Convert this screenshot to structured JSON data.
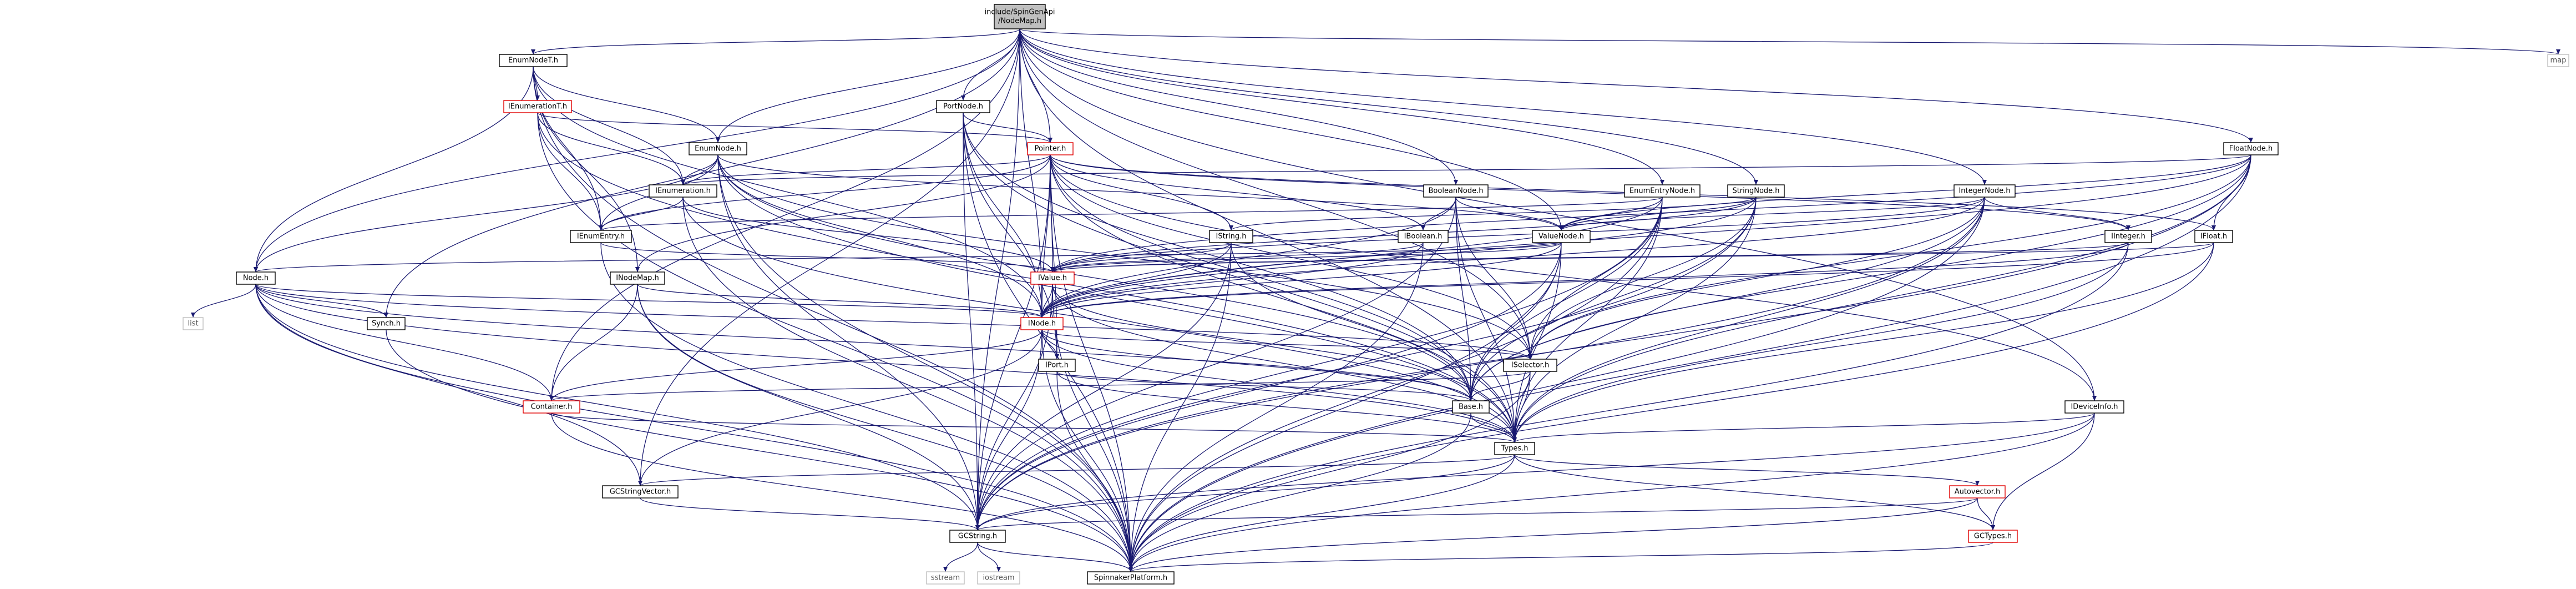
{
  "nodes": [
    {
      "id": "root",
      "label": "include/SpinGenApi/NodeMap.h",
      "lines": [
        "include/SpinGenApi",
        "/NodeMap.h"
      ],
      "style": "root"
    },
    {
      "id": "enumnodet",
      "label": "EnumNodeT.h",
      "style": "normal"
    },
    {
      "id": "ienumerationt",
      "label": "IEnumerationT.h",
      "style": "red"
    },
    {
      "id": "portnode",
      "label": "PortNode.h",
      "style": "normal"
    },
    {
      "id": "pointer",
      "label": "Pointer.h",
      "style": "red"
    },
    {
      "id": "enumnode",
      "label": "EnumNode.h",
      "style": "normal"
    },
    {
      "id": "booleannode",
      "label": "BooleanNode.h",
      "style": "normal"
    },
    {
      "id": "enumentrynode",
      "label": "EnumEntryNode.h",
      "style": "normal"
    },
    {
      "id": "stringnode",
      "label": "StringNode.h",
      "style": "normal"
    },
    {
      "id": "integernode",
      "label": "IntegerNode.h",
      "style": "normal"
    },
    {
      "id": "floatnode",
      "label": "FloatNode.h",
      "style": "normal"
    },
    {
      "id": "map",
      "label": "map",
      "style": "ghost"
    },
    {
      "id": "ienumeration",
      "label": "IEnumeration.h",
      "style": "normal"
    },
    {
      "id": "ienumentry",
      "label": "IEnumEntry.h",
      "style": "normal"
    },
    {
      "id": "iboolean",
      "label": "IBoolean.h",
      "style": "normal"
    },
    {
      "id": "istring",
      "label": "IString.h",
      "style": "normal"
    },
    {
      "id": "valuenode",
      "label": "ValueNode.h",
      "style": "normal"
    },
    {
      "id": "integer",
      "label": "IInteger.h",
      "style": "normal"
    },
    {
      "id": "ifloat",
      "label": "IFloat.h",
      "style": "normal"
    },
    {
      "id": "node",
      "label": "Node.h",
      "style": "normal"
    },
    {
      "id": "list",
      "label": "list",
      "style": "ghost"
    },
    {
      "id": "nodemap",
      "label": "INodeMap.h",
      "style": "normal"
    },
    {
      "id": "ivalue",
      "label": "IValue.h",
      "style": "red"
    },
    {
      "id": "synch",
      "label": "Synch.h",
      "style": "normal"
    },
    {
      "id": "inode",
      "label": "INode.h",
      "style": "red"
    },
    {
      "id": "iport",
      "label": "IPort.h",
      "style": "normal"
    },
    {
      "id": "iselector",
      "label": "ISelector.h",
      "style": "normal"
    },
    {
      "id": "container",
      "label": "Container.h",
      "style": "red"
    },
    {
      "id": "base",
      "label": "Base.h",
      "style": "normal"
    },
    {
      "id": "ideviceinfo",
      "label": "IDeviceInfo.h",
      "style": "normal"
    },
    {
      "id": "types",
      "label": "Types.h",
      "style": "normal"
    },
    {
      "id": "gcstringvector",
      "label": "GCStringVector.h",
      "style": "normal"
    },
    {
      "id": "autovector",
      "label": "Autovector.h",
      "style": "red"
    },
    {
      "id": "gcstring",
      "label": "GCString.h",
      "style": "normal"
    },
    {
      "id": "gctypes",
      "label": "GCTypes.h",
      "style": "red"
    },
    {
      "id": "sstream",
      "label": "sstream",
      "style": "ghost"
    },
    {
      "id": "iostream",
      "label": "iostream",
      "style": "ghost"
    },
    {
      "id": "spinplatform",
      "label": "SpinnakerPlatform.h",
      "style": "normal"
    }
  ],
  "edges": [
    [
      "root",
      "enumnodet"
    ],
    [
      "root",
      "portnode"
    ],
    [
      "root",
      "pointer"
    ],
    [
      "root",
      "enumnode"
    ],
    [
      "root",
      "booleannode"
    ],
    [
      "root",
      "enumentrynode"
    ],
    [
      "root",
      "stringnode"
    ],
    [
      "root",
      "integernode"
    ],
    [
      "root",
      "floatnode"
    ],
    [
      "root",
      "map"
    ],
    [
      "root",
      "valuenode"
    ],
    [
      "root",
      "node"
    ],
    [
      "root",
      "synch"
    ],
    [
      "root",
      "inode"
    ],
    [
      "root",
      "iselector"
    ],
    [
      "root",
      "container"
    ],
    [
      "root",
      "gcstring"
    ],
    [
      "root",
      "gcstringvector"
    ],
    [
      "root",
      "ideviceinfo"
    ],
    [
      "root",
      "types"
    ],
    [
      "enumnodet",
      "ienumerationt"
    ],
    [
      "enumnodet",
      "enumnode"
    ],
    [
      "enumnodet",
      "ienumeration"
    ],
    [
      "enumnodet",
      "ienumentry"
    ],
    [
      "enumnodet",
      "node"
    ],
    [
      "enumnodet",
      "nodemap"
    ],
    [
      "enumnodet",
      "spinplatform"
    ],
    [
      "enumnodet",
      "inode"
    ],
    [
      "ienumerationt",
      "pointer"
    ],
    [
      "ienumerationt",
      "ienumeration"
    ],
    [
      "ienumerationt",
      "ienumentry"
    ],
    [
      "ienumerationt",
      "types"
    ],
    [
      "ienumerationt",
      "spinplatform"
    ],
    [
      "portnode",
      "pointer"
    ],
    [
      "portnode",
      "iport"
    ],
    [
      "portnode",
      "inode"
    ],
    [
      "portnode",
      "types"
    ],
    [
      "portnode",
      "base"
    ],
    [
      "portnode",
      "gcstring"
    ],
    [
      "portnode",
      "spinplatform"
    ],
    [
      "pointer",
      "ienumeration"
    ],
    [
      "pointer",
      "ienumentry"
    ],
    [
      "pointer",
      "iboolean"
    ],
    [
      "pointer",
      "istring"
    ],
    [
      "pointer",
      "integer"
    ],
    [
      "pointer",
      "ifloat"
    ],
    [
      "pointer",
      "ivalue"
    ],
    [
      "pointer",
      "inode"
    ],
    [
      "pointer",
      "iport"
    ],
    [
      "pointer",
      "iselector"
    ],
    [
      "pointer",
      "nodemap"
    ],
    [
      "pointer",
      "gcstring"
    ],
    [
      "pointer",
      "base"
    ],
    [
      "pointer",
      "types"
    ],
    [
      "pointer",
      "spinplatform"
    ],
    [
      "pointer",
      "ideviceinfo"
    ],
    [
      "enumnode",
      "ienumeration"
    ],
    [
      "enumnode",
      "ienumentry"
    ],
    [
      "enumnode",
      "valuenode"
    ],
    [
      "enumnode",
      "node"
    ],
    [
      "enumnode",
      "inode"
    ],
    [
      "enumnode",
      "iselector"
    ],
    [
      "enumnode",
      "base"
    ],
    [
      "enumnode",
      "types"
    ],
    [
      "enumnode",
      "gcstring"
    ],
    [
      "enumnode",
      "spinplatform"
    ],
    [
      "booleannode",
      "iboolean"
    ],
    [
      "booleannode",
      "valuenode"
    ],
    [
      "booleannode",
      "inode"
    ],
    [
      "booleannode",
      "iselector"
    ],
    [
      "booleannode",
      "base"
    ],
    [
      "booleannode",
      "types"
    ],
    [
      "booleannode",
      "gcstring"
    ],
    [
      "enumentrynode",
      "ienumentry"
    ],
    [
      "enumentrynode",
      "valuenode"
    ],
    [
      "enumentrynode",
      "inode"
    ],
    [
      "enumentrynode",
      "iselector"
    ],
    [
      "enumentrynode",
      "base"
    ],
    [
      "enumentrynode",
      "types"
    ],
    [
      "enumentrynode",
      "gcstring"
    ],
    [
      "enumentrynode",
      "spinplatform"
    ],
    [
      "stringnode",
      "istring"
    ],
    [
      "stringnode",
      "valuenode"
    ],
    [
      "stringnode",
      "inode"
    ],
    [
      "stringnode",
      "ivalue"
    ],
    [
      "stringnode",
      "iselector"
    ],
    [
      "stringnode",
      "base"
    ],
    [
      "stringnode",
      "types"
    ],
    [
      "stringnode",
      "gcstring"
    ],
    [
      "integernode",
      "integer"
    ],
    [
      "integernode",
      "valuenode"
    ],
    [
      "integernode",
      "inode"
    ],
    [
      "integernode",
      "ivalue"
    ],
    [
      "integernode",
      "iselector"
    ],
    [
      "integernode",
      "base"
    ],
    [
      "integernode",
      "types"
    ],
    [
      "integernode",
      "gcstring"
    ],
    [
      "integernode",
      "spinplatform"
    ],
    [
      "floatnode",
      "ifloat"
    ],
    [
      "floatnode",
      "valuenode"
    ],
    [
      "floatnode",
      "ienumeration"
    ],
    [
      "floatnode",
      "inode"
    ],
    [
      "floatnode",
      "ivalue"
    ],
    [
      "floatnode",
      "iselector"
    ],
    [
      "floatnode",
      "base"
    ],
    [
      "floatnode",
      "types"
    ],
    [
      "floatnode",
      "gcstring"
    ],
    [
      "floatnode",
      "spinplatform"
    ],
    [
      "ienumeration",
      "ienumentry"
    ],
    [
      "ienumeration",
      "ivalue"
    ],
    [
      "ienumeration",
      "types"
    ],
    [
      "ienumeration",
      "spinplatform"
    ],
    [
      "ienumentry",
      "ivalue"
    ],
    [
      "ienumentry",
      "spinplatform"
    ],
    [
      "iboolean",
      "ivalue"
    ],
    [
      "iboolean",
      "inode"
    ],
    [
      "iboolean",
      "spinplatform"
    ],
    [
      "istring",
      "ivalue"
    ],
    [
      "istring",
      "inode"
    ],
    [
      "istring",
      "spinplatform"
    ],
    [
      "istring",
      "gcstring"
    ],
    [
      "istring",
      "base"
    ],
    [
      "valuenode",
      "node"
    ],
    [
      "valuenode",
      "ivalue"
    ],
    [
      "valuenode",
      "inode"
    ],
    [
      "valuenode",
      "base"
    ],
    [
      "valuenode",
      "types"
    ],
    [
      "valuenode",
      "gcstring"
    ],
    [
      "valuenode",
      "spinplatform"
    ],
    [
      "integer",
      "ivalue"
    ],
    [
      "integer",
      "inode"
    ],
    [
      "integer",
      "types"
    ],
    [
      "integer",
      "spinplatform"
    ],
    [
      "ifloat",
      "ivalue"
    ],
    [
      "ifloat",
      "inode"
    ],
    [
      "ifloat",
      "types"
    ],
    [
      "ifloat",
      "spinplatform"
    ],
    [
      "node",
      "list"
    ],
    [
      "node",
      "synch"
    ],
    [
      "node",
      "inode"
    ],
    [
      "node",
      "iselector"
    ],
    [
      "node",
      "container"
    ],
    [
      "node",
      "base"
    ],
    [
      "node",
      "types"
    ],
    [
      "node",
      "gcstring"
    ],
    [
      "node",
      "gcstringvector"
    ],
    [
      "node",
      "spinplatform"
    ],
    [
      "nodemap",
      "inode"
    ],
    [
      "nodemap",
      "container"
    ],
    [
      "nodemap",
      "gcstring"
    ],
    [
      "nodemap",
      "spinplatform"
    ],
    [
      "ivalue",
      "inode"
    ],
    [
      "ivalue",
      "base"
    ],
    [
      "ivalue",
      "types"
    ],
    [
      "ivalue",
      "gcstring"
    ],
    [
      "ivalue",
      "spinplatform"
    ],
    [
      "synch",
      "spinplatform"
    ],
    [
      "inode",
      "iselector"
    ],
    [
      "inode",
      "container"
    ],
    [
      "inode",
      "base"
    ],
    [
      "inode",
      "types"
    ],
    [
      "inode",
      "gcstring"
    ],
    [
      "inode",
      "gcstringvector"
    ],
    [
      "inode",
      "spinplatform"
    ],
    [
      "inode",
      "iport"
    ],
    [
      "iport",
      "base"
    ],
    [
      "iport",
      "types"
    ],
    [
      "iport",
      "spinplatform"
    ],
    [
      "iselector",
      "container"
    ],
    [
      "iselector",
      "base"
    ],
    [
      "iselector",
      "types"
    ],
    [
      "iselector",
      "spinplatform"
    ],
    [
      "container",
      "types"
    ],
    [
      "container",
      "spinplatform"
    ],
    [
      "base",
      "types"
    ],
    [
      "base",
      "spinplatform"
    ],
    [
      "ideviceinfo",
      "types"
    ],
    [
      "ideviceinfo",
      "gcstring"
    ],
    [
      "ideviceinfo",
      "gctypes"
    ],
    [
      "ideviceinfo",
      "spinplatform"
    ],
    [
      "types",
      "gcstring"
    ],
    [
      "types",
      "gcstringvector"
    ],
    [
      "types",
      "autovector"
    ],
    [
      "types",
      "gctypes"
    ],
    [
      "types",
      "spinplatform"
    ],
    [
      "gcstringvector",
      "gcstring"
    ],
    [
      "autovector",
      "gctypes"
    ],
    [
      "autovector",
      "spinplatform"
    ],
    [
      "autovector",
      "gcstring"
    ],
    [
      "gcstring",
      "sstream"
    ],
    [
      "gcstring",
      "iostream"
    ],
    [
      "gcstring",
      "spinplatform"
    ],
    [
      "gctypes",
      "spinplatform"
    ]
  ]
}
